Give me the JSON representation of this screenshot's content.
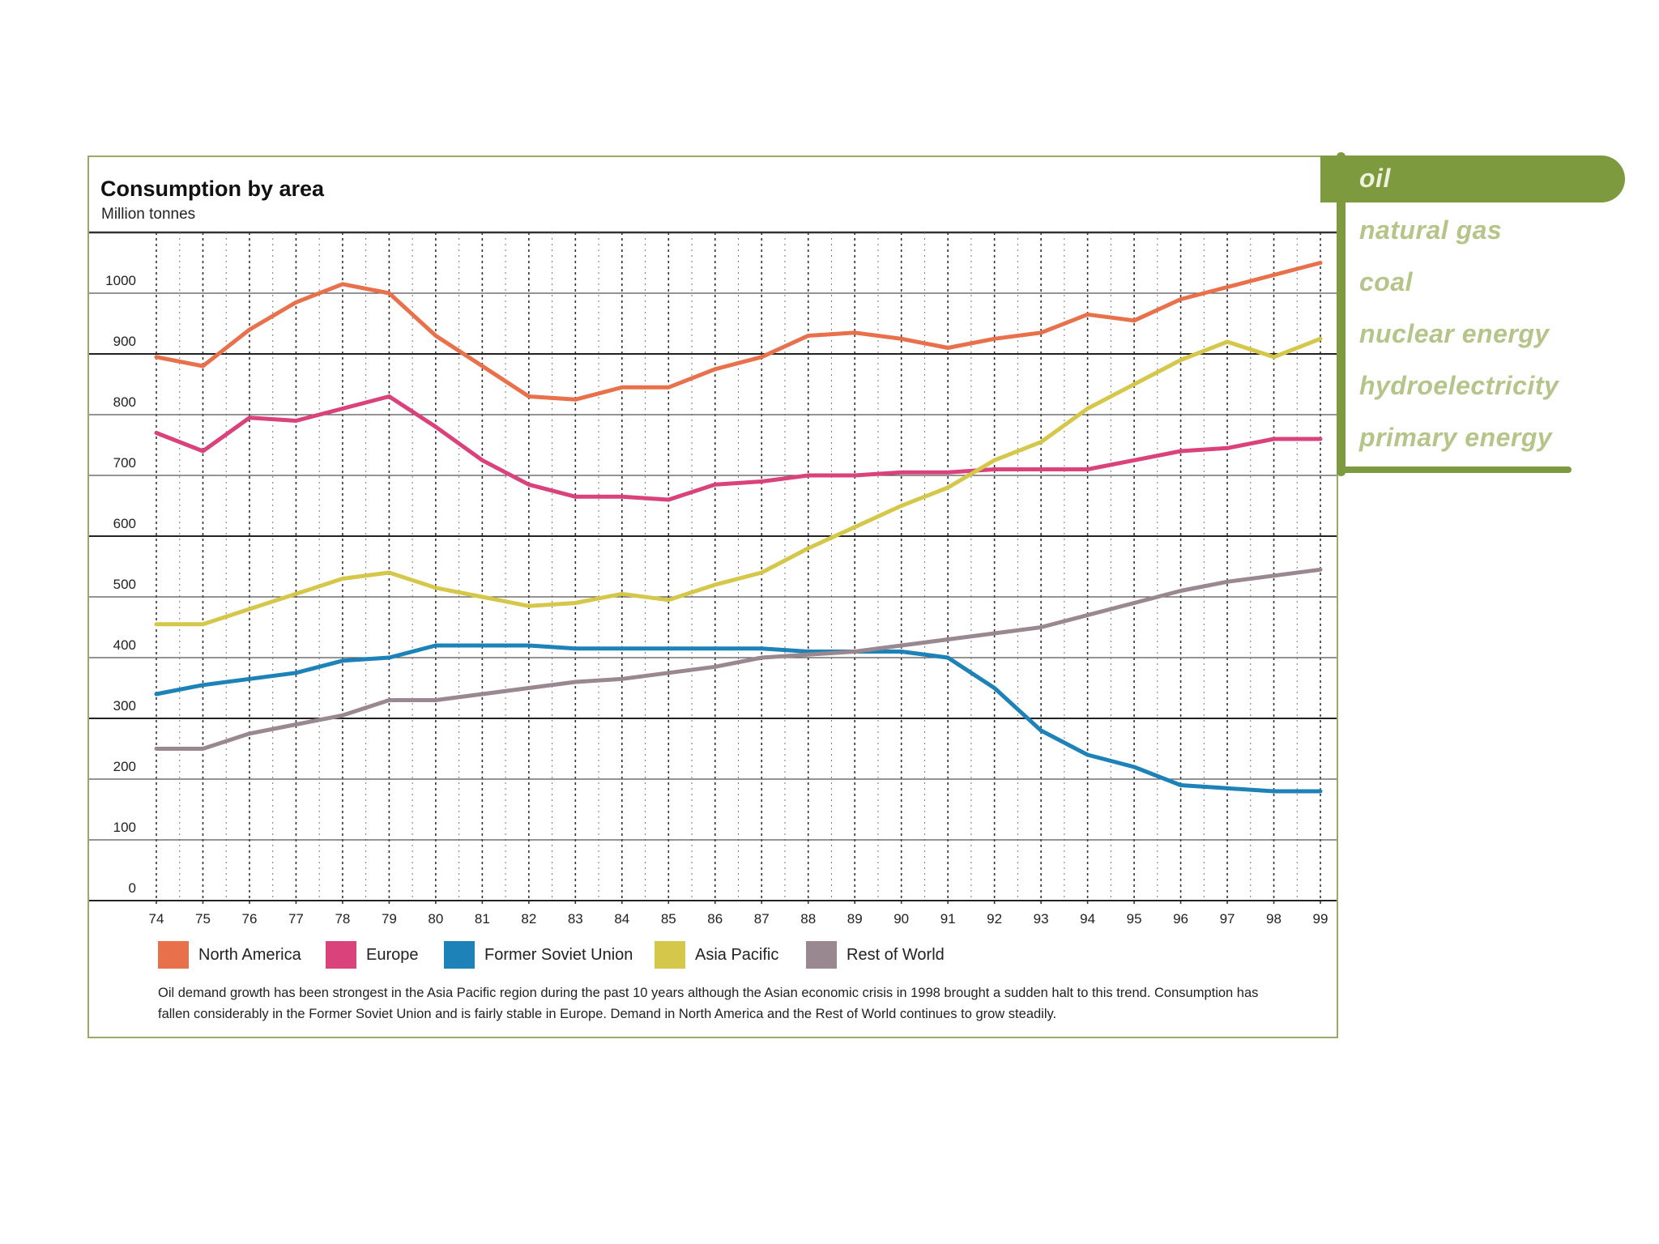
{
  "tabs": {
    "items": [
      "oil",
      "natural gas",
      "coal",
      "nuclear energy",
      "hydroelectricity",
      "primary energy"
    ],
    "active": "oil",
    "color": "#7d9a3f"
  },
  "caption": "Oil demand growth has been strongest in the Asia Pacific region during the past 10 years although the Asian economic crisis in 1998 brought a sudden halt to this trend. Consumption has fallen considerably in the Former Soviet Union and is fairly stable in Europe. Demand in North America and the Rest of World continues to grow steadily.",
  "chart_data": {
    "type": "line",
    "title": "Consumption by area",
    "subtitle": "Million tonnes",
    "xlabel": "",
    "ylabel": "",
    "ylim": [
      0,
      1100
    ],
    "yticks": [
      0,
      100,
      200,
      300,
      400,
      500,
      600,
      700,
      800,
      900,
      1000
    ],
    "categories": [
      "74",
      "75",
      "76",
      "77",
      "78",
      "79",
      "80",
      "81",
      "82",
      "83",
      "84",
      "85",
      "86",
      "87",
      "88",
      "89",
      "90",
      "91",
      "92",
      "93",
      "94",
      "95",
      "96",
      "97",
      "98",
      "99"
    ],
    "grid": true,
    "legend_position": "bottom",
    "series": [
      {
        "name": "North America",
        "color": "#e8704a",
        "values": [
          895,
          880,
          940,
          985,
          1015,
          1000,
          930,
          880,
          830,
          825,
          845,
          845,
          875,
          895,
          930,
          935,
          925,
          910,
          925,
          935,
          965,
          955,
          990,
          1010,
          1030,
          1050
        ]
      },
      {
        "name": "Europe",
        "color": "#d9427a",
        "values": [
          770,
          740,
          795,
          790,
          810,
          830,
          780,
          725,
          685,
          665,
          665,
          660,
          685,
          690,
          700,
          700,
          705,
          705,
          710,
          710,
          710,
          725,
          740,
          745,
          760,
          760
        ]
      },
      {
        "name": "Former Soviet Union",
        "color": "#1c82b8",
        "values": [
          340,
          355,
          365,
          375,
          395,
          400,
          420,
          420,
          420,
          415,
          415,
          415,
          415,
          415,
          410,
          410,
          410,
          400,
          350,
          280,
          240,
          220,
          190,
          185,
          180,
          180
        ]
      },
      {
        "name": "Asia Pacific",
        "color": "#d4c74a",
        "values": [
          455,
          455,
          480,
          505,
          530,
          540,
          515,
          500,
          485,
          490,
          505,
          495,
          520,
          540,
          580,
          615,
          650,
          680,
          725,
          755,
          810,
          850,
          890,
          920,
          895,
          925
        ]
      },
      {
        "name": "Rest of World",
        "color": "#9a8890",
        "values": [
          250,
          250,
          275,
          290,
          305,
          330,
          330,
          340,
          350,
          360,
          365,
          375,
          385,
          400,
          405,
          410,
          420,
          430,
          440,
          450,
          470,
          490,
          510,
          525,
          535,
          545
        ]
      }
    ]
  }
}
